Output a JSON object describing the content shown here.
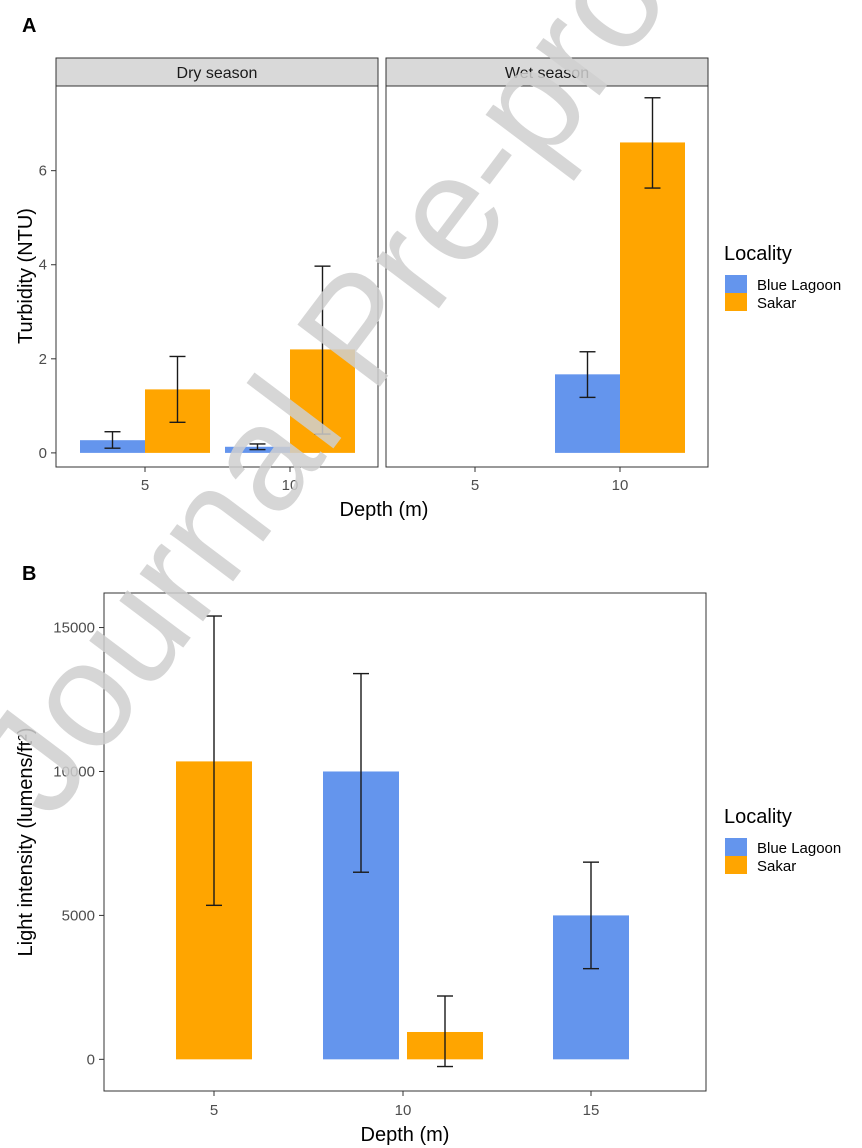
{
  "colors": {
    "blue_lagoon": "#6495ED",
    "sakar": "#FFA500"
  },
  "watermark": "Journal Pre-proof",
  "chart_data": [
    {
      "panel": "A",
      "type": "bar",
      "facets": [
        "Dry season",
        "Wet season"
      ],
      "categories": [
        "5",
        "10"
      ],
      "xlabel": "Depth (m)",
      "ylabel": "Turbidity (NTU)",
      "ylim": [
        -0.3,
        7.8
      ],
      "yticks": [
        0,
        2,
        4,
        6
      ],
      "legend": {
        "title": "Locality",
        "position": "right"
      },
      "grid": false,
      "series": [
        {
          "name": "Blue Lagoon",
          "color": "#6495ED",
          "values": {
            "Dry season": [
              0.27,
              0.13
            ],
            "Wet season": [
              null,
              1.67
            ]
          },
          "errors": {
            "Dry season": [
              [
                0.1,
                0.45
              ],
              [
                0.07,
                0.19
              ]
            ],
            "Wet season": [
              null,
              [
                1.18,
                2.15
              ]
            ]
          }
        },
        {
          "name": "Sakar",
          "color": "#FFA500",
          "values": {
            "Dry season": [
              1.35,
              2.2
            ],
            "Wet season": [
              null,
              6.6
            ]
          },
          "errors": {
            "Dry season": [
              [
                0.65,
                2.05
              ],
              [
                0.4,
                3.97
              ]
            ],
            "Wet season": [
              null,
              [
                5.63,
                7.55
              ]
            ]
          }
        }
      ]
    },
    {
      "panel": "B",
      "type": "bar",
      "categories": [
        "5",
        "10",
        "15"
      ],
      "xlabel": "Depth (m)",
      "ylabel": "Light intensity (lumens/ft²)",
      "ylim": [
        -1100,
        16200
      ],
      "yticks": [
        0,
        5000,
        10000,
        15000
      ],
      "legend": {
        "title": "Locality",
        "position": "right"
      },
      "grid": false,
      "series": [
        {
          "name": "Blue Lagoon",
          "color": "#6495ED",
          "values": [
            null,
            10000,
            5000
          ],
          "errors": [
            null,
            [
              6500,
              13400
            ],
            [
              3150,
              6850
            ]
          ]
        },
        {
          "name": "Sakar",
          "color": "#FFA500",
          "values": [
            10350,
            950,
            null
          ],
          "errors": [
            [
              5350,
              15400
            ],
            [
              -250,
              2200
            ],
            null
          ]
        }
      ]
    }
  ]
}
